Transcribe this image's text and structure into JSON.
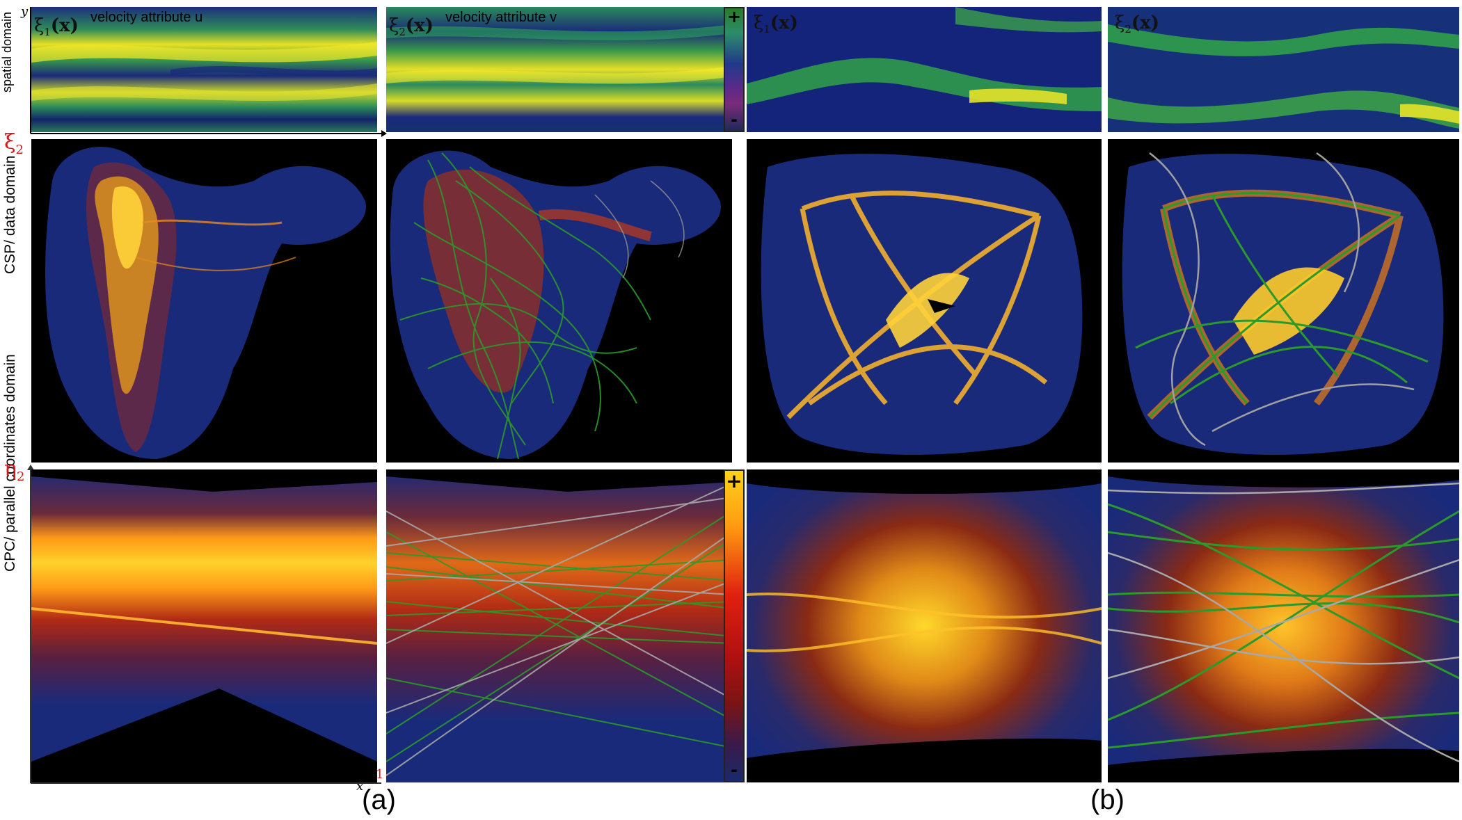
{
  "row_labels": {
    "spatial": "spatial domain",
    "csp": "CSP/ data domain",
    "cpc": "CPC/ parallel coordinates domain"
  },
  "panel_titles": {
    "a_top_left_xi": "ξ",
    "a_top_left_sub": "1",
    "a_top_left_x": "(x)",
    "a_top_left_attr": "velocity attribute u",
    "a_top_right_xi": "ξ",
    "a_top_right_sub": "2",
    "a_top_right_x": "(x)",
    "a_top_right_attr": "velocity attribute v",
    "b_top_left_xi": "ξ",
    "b_top_left_sub": "1",
    "b_top_left_x": "(x)",
    "b_top_right_xi": "ξ",
    "b_top_right_sub": "2",
    "b_top_right_x": "(x)"
  },
  "axis_symbols": {
    "xi2": "ξ",
    "xi2_sub": "2",
    "xi1": "ξ",
    "xi1_sub": "1",
    "eta2": "η",
    "eta2_sub": "2",
    "eta1": "η",
    "eta1_sub": "1",
    "x": "x",
    "y": "y"
  },
  "colorbars": {
    "spatial_plus": "+",
    "spatial_minus": "-",
    "density_plus": "+",
    "density_minus": "-",
    "spatial_colors": [
      "#2a7a2a",
      "#2d8d6a",
      "#1f3a8a",
      "#5a2a8a",
      "#7a2a7a",
      "#1f2a5a"
    ],
    "density_colors": [
      "#ffd21a",
      "#ff9a10",
      "#e02010",
      "#b01010",
      "#7a1414",
      "#3a1a4a",
      "#1a2a6a"
    ]
  },
  "sublabels": {
    "a": "(a)",
    "b": "(b)"
  }
}
